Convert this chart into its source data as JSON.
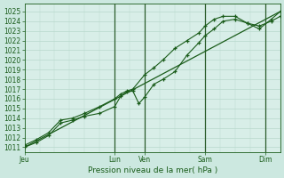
{
  "bg_color": "#cce8e0",
  "plot_bg_color": "#d8eee8",
  "grid_color": "#b8d8cc",
  "line_color": "#1a5c1a",
  "ylabel": "Pression niveau de la mer( hPa )",
  "ylim": [
    1010.5,
    1025.8
  ],
  "yticks": [
    1011,
    1012,
    1013,
    1014,
    1015,
    1016,
    1017,
    1018,
    1019,
    1020,
    1021,
    1022,
    1023,
    1024,
    1025
  ],
  "xtick_labels": [
    "Jeu",
    "Lun",
    "Ven",
    "Sam",
    "Dim"
  ],
  "xtick_positions": [
    0,
    3.0,
    4.0,
    6.0,
    8.0
  ],
  "xlim": [
    0,
    8.5
  ],
  "series1_x": [
    0,
    0.4,
    0.8,
    1.2,
    1.6,
    2.0,
    2.5,
    3.0,
    3.2,
    3.4,
    3.6,
    3.8,
    4.0,
    4.3,
    4.6,
    5.0,
    5.4,
    5.8,
    6.0,
    6.3,
    6.6,
    7.0,
    7.4,
    7.8,
    8.2,
    8.5
  ],
  "series1_y": [
    1011.0,
    1011.5,
    1012.2,
    1013.5,
    1013.8,
    1014.2,
    1014.5,
    1015.2,
    1016.3,
    1016.7,
    1016.8,
    1015.5,
    1016.2,
    1017.5,
    1018.0,
    1018.8,
    1020.5,
    1021.8,
    1022.5,
    1023.2,
    1024.0,
    1024.2,
    1023.8,
    1023.5,
    1024.0,
    1024.5
  ],
  "series2_x": [
    0,
    0.4,
    0.8,
    1.2,
    1.6,
    2.0,
    2.5,
    3.0,
    3.2,
    3.4,
    3.6,
    4.0,
    4.3,
    4.6,
    5.0,
    5.4,
    5.8,
    6.0,
    6.3,
    6.6,
    7.0,
    7.4,
    7.8,
    8.2,
    8.5
  ],
  "series2_y": [
    1011.2,
    1011.8,
    1012.5,
    1013.8,
    1014.0,
    1014.5,
    1015.2,
    1016.0,
    1016.5,
    1016.8,
    1017.0,
    1018.5,
    1019.2,
    1020.0,
    1021.2,
    1022.0,
    1022.8,
    1023.5,
    1024.2,
    1024.5,
    1024.5,
    1023.8,
    1023.2,
    1024.2,
    1025.0
  ],
  "series3_x": [
    0,
    8.5
  ],
  "series3_y": [
    1011.0,
    1025.0
  ],
  "vline_positions": [
    3.0,
    4.0,
    6.0,
    8.0
  ],
  "vline_color": "#2a5c2a",
  "ylabel_fontsize": 6.5,
  "tick_fontsize": 5.5
}
